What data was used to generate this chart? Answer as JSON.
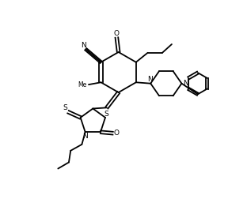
{
  "bg_color": "#ffffff",
  "line_color": "#000000",
  "lw": 1.3,
  "figsize": [
    2.88,
    2.71
  ],
  "dpi": 100,
  "xlim": [
    0,
    10
  ],
  "ylim": [
    0,
    9.5
  ]
}
